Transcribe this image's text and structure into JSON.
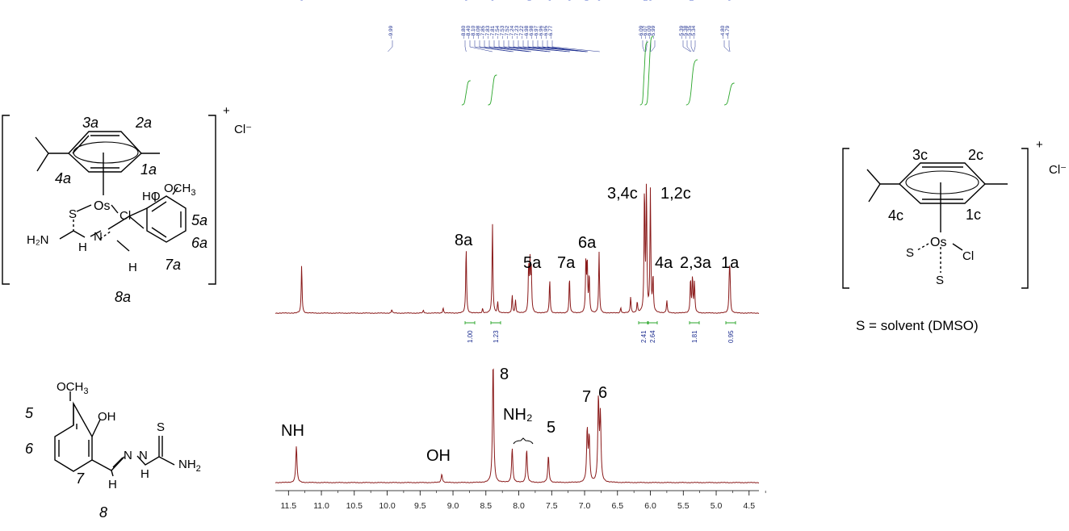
{
  "peak_list": [
    "9.99",
    "8.80",
    "8.40",
    "8.10",
    "8.08",
    "7.85",
    "7.83",
    "7.81",
    "7.54",
    "7.53",
    "7.52",
    "7.24",
    "7.23",
    "7.22",
    "6.98",
    "6.98",
    "6.97",
    "6.96",
    "6.95",
    "6.77",
    "6.09",
    "6.07",
    "6.00",
    "5.99",
    "5.39",
    "5.38",
    "5.35",
    "5.34",
    "4.80",
    "4.79"
  ],
  "integrals": [
    "1.00",
    "1.23",
    "2.41",
    "2.64",
    "1.81",
    "0.95"
  ],
  "x_ticks": [
    "11.5",
    "11.0",
    "10.5",
    "10.0",
    "9.5",
    "9.0",
    "8.5",
    "8.0",
    "7.5",
    "7.0",
    "6.5",
    "6.0",
    "5.5",
    "5.0",
    "4.5"
  ],
  "complex_labels": {
    "a8": "8a",
    "a5": "5a",
    "a7": "7a",
    "a6": "6a",
    "c34": "3,4c",
    "c12": "1,2c",
    "a4": "4a",
    "a23": "2,3a",
    "a1": "1a"
  },
  "ligand_labels": {
    "nh": "NH",
    "oh": "OH",
    "nh2": "NH₂",
    "p8": "8",
    "p5": "5",
    "p7": "7",
    "p6": "6"
  },
  "left_structure": {
    "r3": "3a",
    "r2": "2a",
    "r4": "4a",
    "r1": "1a",
    "r5": "5a",
    "r6": "6a",
    "r7": "7a",
    "r8": "8a",
    "os": "Os",
    "cl": "Cl",
    "s": "S",
    "n": "N",
    "nh": "H",
    "ho": "HO",
    "och": "OCH",
    "three": "3",
    "h2n": "H₂N",
    "ch": "H",
    "plus": "+",
    "counter": "Cl⁻"
  },
  "right_structure": {
    "r3": "3c",
    "r2": "2c",
    "r4": "4c",
    "r1": "1c",
    "os": "Os",
    "cl": "Cl",
    "s1": "S",
    "s2": "S",
    "plus": "+",
    "counter": "Cl⁻",
    "legend": "S = solvent (DMSO)"
  },
  "ligand_structure": {
    "och": "OCH",
    "three": "3",
    "oh": "OH",
    "r5": "5",
    "r6": "6",
    "r7": "7",
    "r8": "8",
    "n1": "N",
    "n2": "N",
    "h1": "H",
    "h2": "H",
    "s": "S",
    "nh": "NH",
    "two": "2"
  },
  "chart_data": {
    "type": "line",
    "title": "",
    "xlabel": "",
    "ylabel": "",
    "xlim": [
      11.7,
      4.35
    ],
    "x_reversed": true,
    "series": [
      {
        "peaks": [
          {
            "x": 11.3,
            "h": 0.54
          },
          {
            "x": 9.93,
            "h": 0.04
          },
          {
            "x": 9.45,
            "h": 0.03
          },
          {
            "x": 9.15,
            "h": 0.06
          },
          {
            "x": 8.8,
            "h": 0.74
          },
          {
            "x": 8.55,
            "h": 0.05
          },
          {
            "x": 8.4,
            "h": 1.0
          },
          {
            "x": 8.32,
            "h": 0.12
          },
          {
            "x": 8.1,
            "h": 0.2
          },
          {
            "x": 8.05,
            "h": 0.14
          },
          {
            "x": 7.85,
            "h": 0.52
          },
          {
            "x": 7.83,
            "h": 0.55
          },
          {
            "x": 7.81,
            "h": 0.46
          },
          {
            "x": 7.53,
            "h": 0.38
          },
          {
            "x": 7.23,
            "h": 0.4
          },
          {
            "x": 6.98,
            "h": 0.58
          },
          {
            "x": 6.96,
            "h": 0.56
          },
          {
            "x": 6.93,
            "h": 0.42
          },
          {
            "x": 6.78,
            "h": 0.68
          },
          {
            "x": 6.45,
            "h": 0.06
          },
          {
            "x": 6.3,
            "h": 0.18
          },
          {
            "x": 6.2,
            "h": 0.12
          },
          {
            "x": 6.09,
            "h": 1.38
          },
          {
            "x": 6.06,
            "h": 1.4
          },
          {
            "x": 6.0,
            "h": 1.36
          },
          {
            "x": 5.96,
            "h": 0.4
          },
          {
            "x": 5.75,
            "h": 0.14
          },
          {
            "x": 5.39,
            "h": 0.38
          },
          {
            "x": 5.36,
            "h": 0.4
          },
          {
            "x": 5.33,
            "h": 0.34
          },
          {
            "x": 4.8,
            "h": 0.38
          },
          {
            "x": 4.79,
            "h": 0.36
          }
        ]
      },
      {
        "peaks": [
          {
            "x": 11.38,
            "h": 0.3
          },
          {
            "x": 9.17,
            "h": 0.07
          },
          {
            "x": 8.39,
            "h": 1.0
          },
          {
            "x": 8.1,
            "h": 0.28
          },
          {
            "x": 7.88,
            "h": 0.27
          },
          {
            "x": 7.55,
            "h": 0.22
          },
          {
            "x": 6.96,
            "h": 0.42
          },
          {
            "x": 6.93,
            "h": 0.36
          },
          {
            "x": 6.79,
            "h": 0.67
          },
          {
            "x": 6.76,
            "h": 0.53
          }
        ]
      }
    ]
  }
}
